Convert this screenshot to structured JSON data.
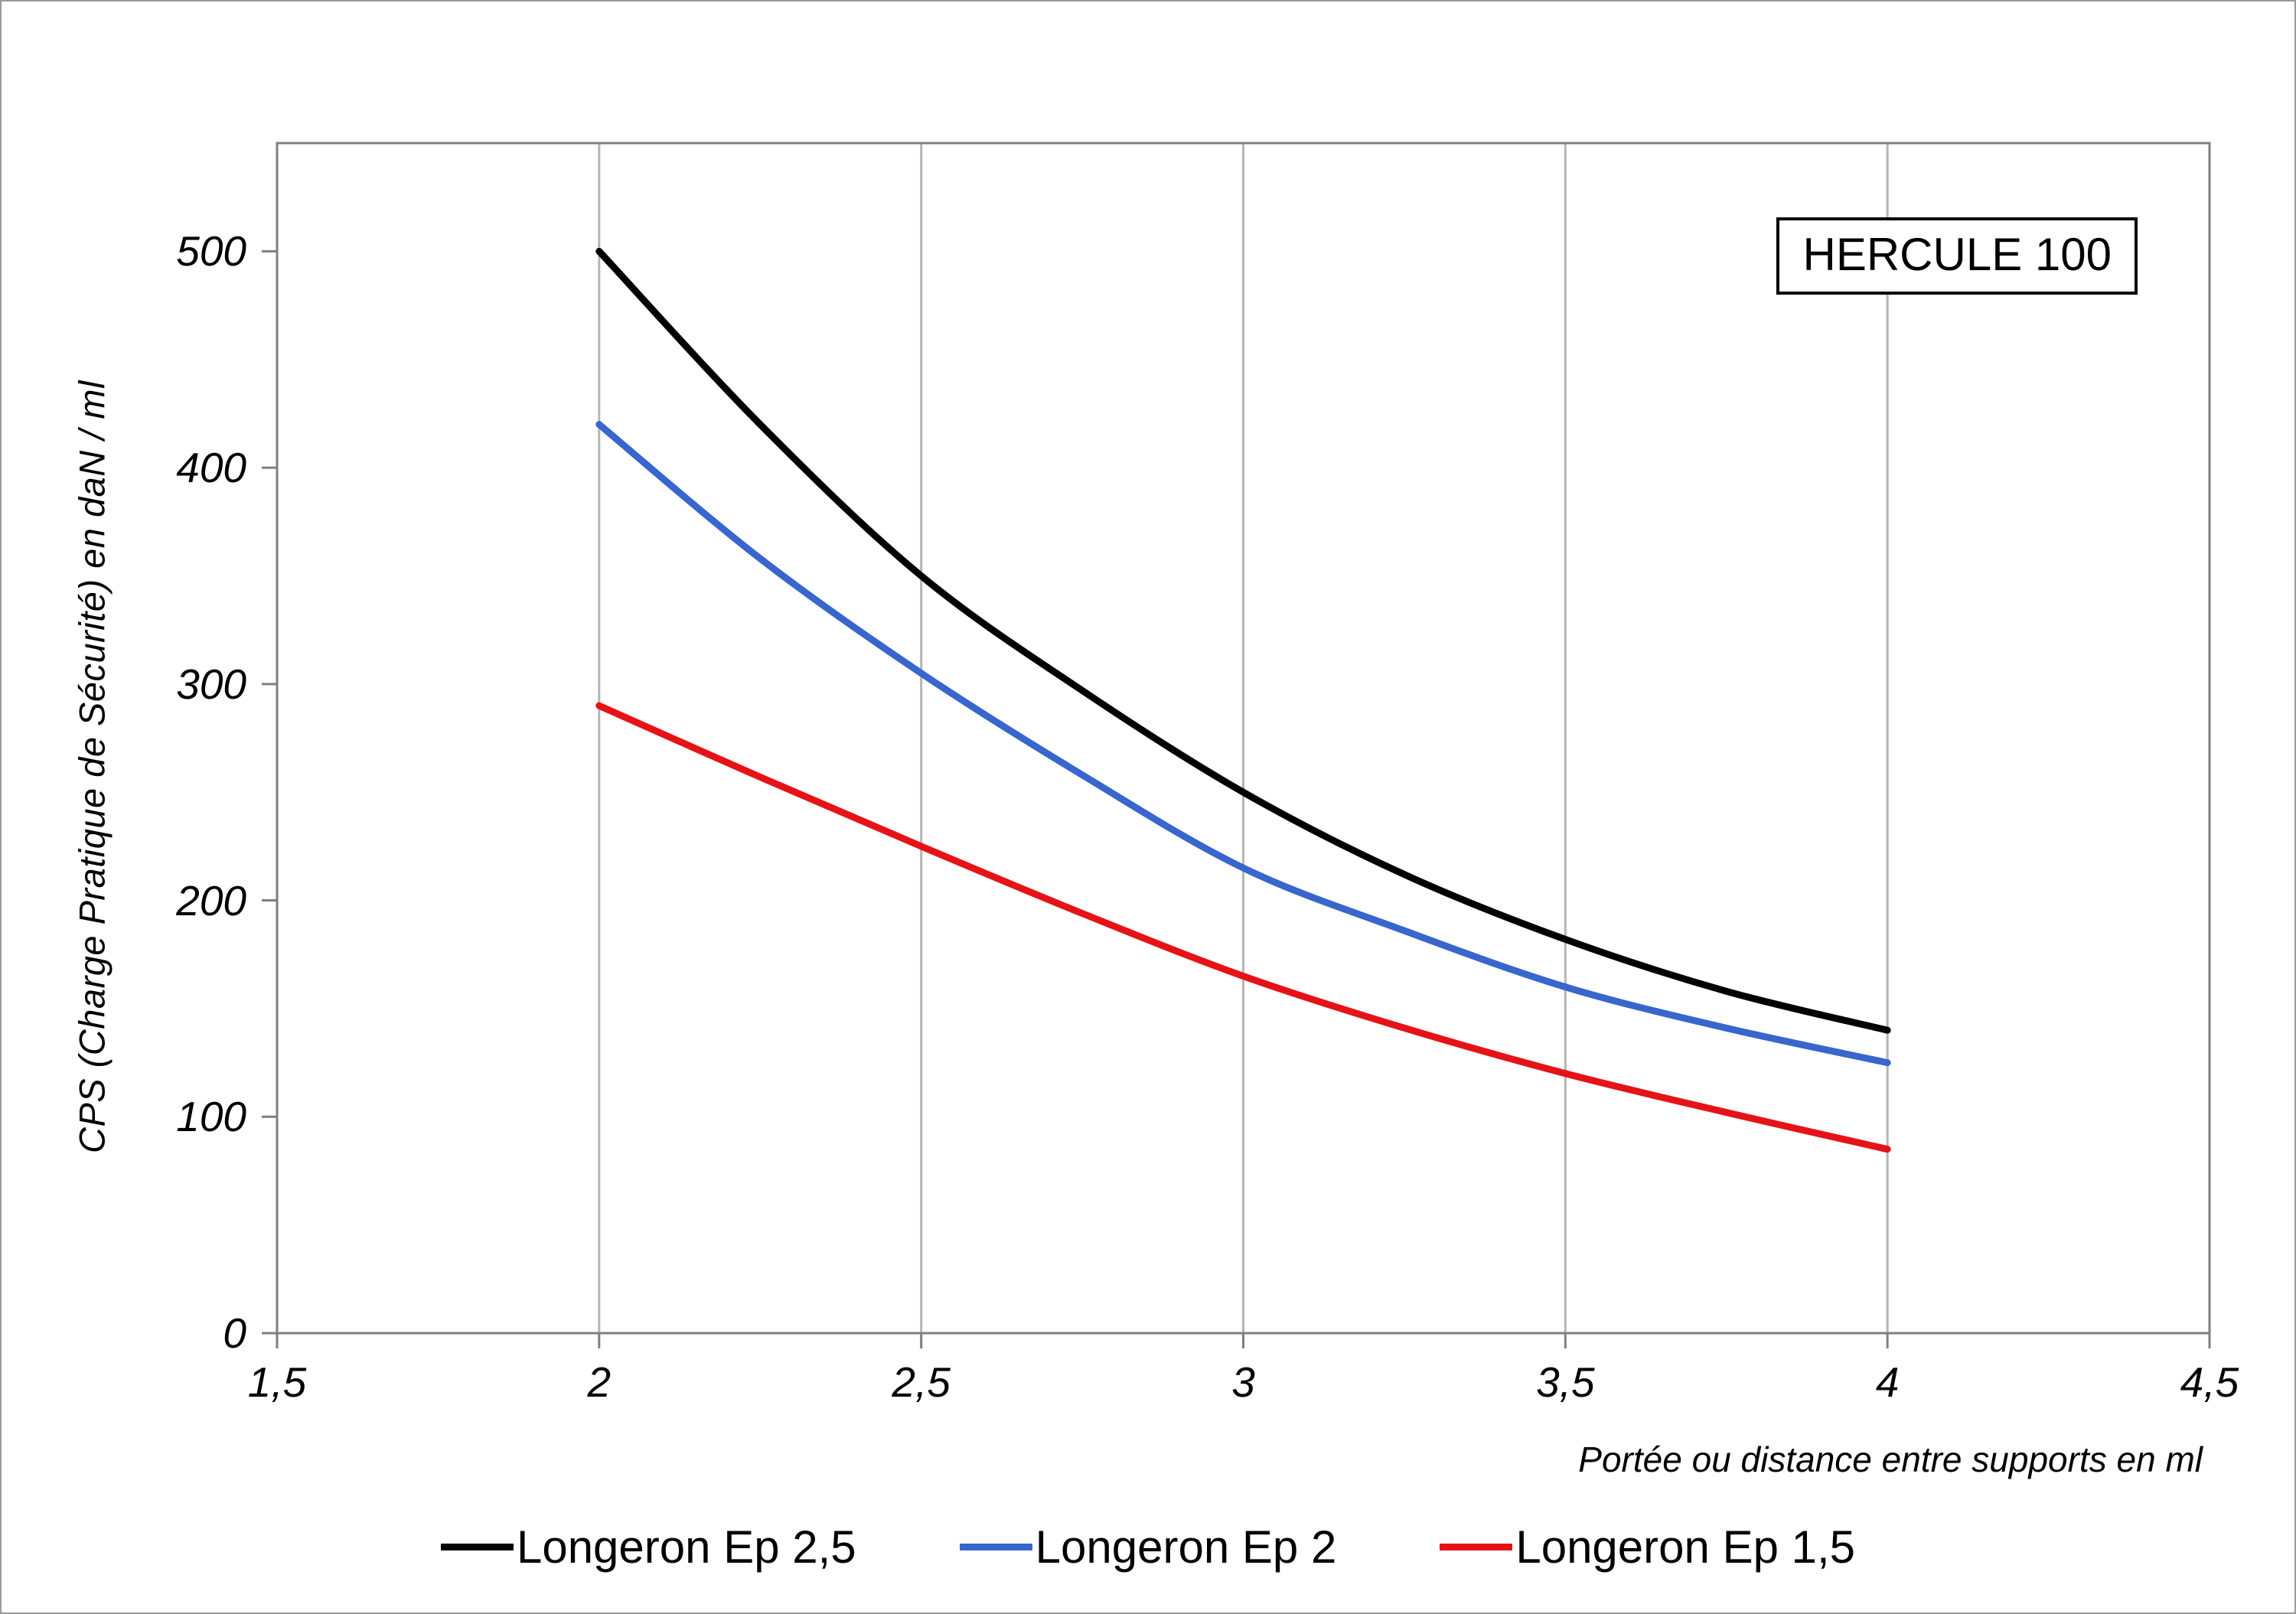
{
  "title_box": "HERCULE 100",
  "chart_data": {
    "type": "line",
    "title": "HERCULE 100",
    "xlabel": "Portée ou distance entre supports en ml",
    "ylabel": "CPS (Charge Pratique de Sécurité) en daN / ml",
    "xlim": [
      1.5,
      4.5
    ],
    "ylim": [
      0,
      550
    ],
    "x_ticks": [
      1.5,
      2,
      2.5,
      3,
      3.5,
      4,
      4.5
    ],
    "x_tick_labels": [
      "1,5",
      "2",
      "2,5",
      "3",
      "3,5",
      "4",
      "4,5"
    ],
    "y_ticks": [
      0,
      100,
      200,
      300,
      400,
      500
    ],
    "y_tick_labels": [
      "0",
      "100",
      "200",
      "300",
      "400",
      "500"
    ],
    "grid": "vertical-only",
    "legend_position": "bottom",
    "x": [
      2,
      2.25,
      2.5,
      2.75,
      3,
      3.25,
      3.5,
      3.75,
      4
    ],
    "series": [
      {
        "name": "Longeron Ep 2,5",
        "color": "#000000",
        "values": [
          500,
          420,
          350,
          297,
          250,
          212,
          182,
          158,
          140
        ]
      },
      {
        "name": "Longeron Ep 2",
        "color": "#3866cc",
        "values": [
          420,
          358,
          305,
          258,
          215,
          186,
          160,
          141,
          125
        ]
      },
      {
        "name": "Longeron Ep 1,5",
        "color": "#e51317",
        "values": [
          290,
          257,
          225,
          194,
          165,
          141,
          120,
          102,
          85
        ]
      }
    ],
    "colors": {
      "gridline": "#b5b5b5",
      "plot_border": "#7f7f7f",
      "tick_mark": "#7f7f7f"
    }
  }
}
